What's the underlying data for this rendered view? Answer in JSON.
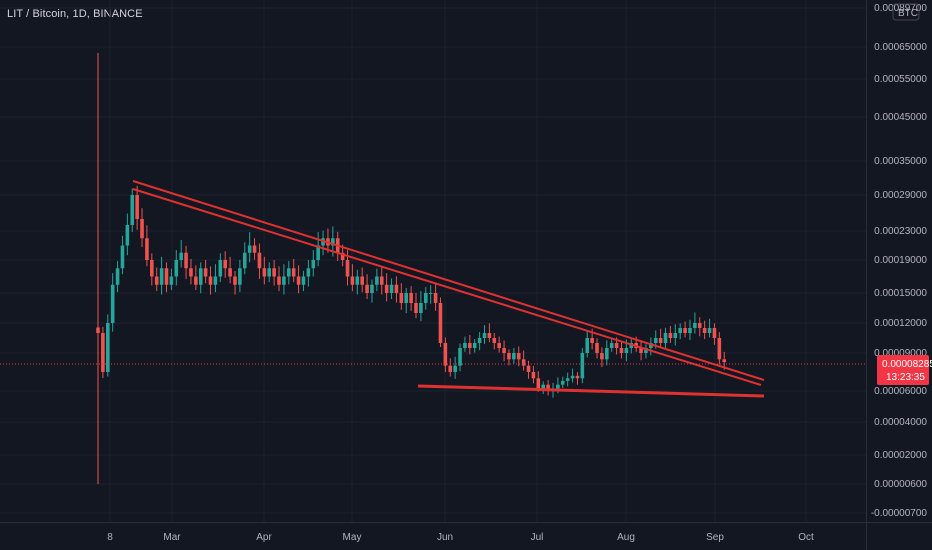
{
  "header": {
    "symbol": "LIT / Bitcoin, 1D, BINANCE"
  },
  "currency_label": "BTC",
  "last_price": {
    "value": 8.285e-05,
    "label": "0.00008285",
    "countdown": "13:23:35",
    "color": "#f23645"
  },
  "colors": {
    "background": "#131722",
    "grid": "#1e2230",
    "up": "#26a69a",
    "down": "#ef5350",
    "trendline": "#e03131",
    "axis_text": "#b2b5be"
  },
  "chart_data": {
    "type": "candlestick",
    "title": "LIT / Bitcoin, 1D, BINANCE",
    "x_tick_labels": [
      "8",
      "Mar",
      "Apr",
      "May",
      "Jun",
      "Jul",
      "Aug",
      "Sep",
      "Oct"
    ],
    "y_tick_labels": [
      "0.00089700",
      "0.00065000",
      "0.00055000",
      "0.00045000",
      "0.00035000",
      "0.00029000",
      "0.00023000",
      "0.00019000",
      "0.00015000",
      "0.00012000",
      "0.00009000",
      "0.00006000",
      "0.00004000",
      "0.00002000",
      "0.00000600",
      "-0.00000700"
    ],
    "y_scale": "non-linear (auto)",
    "grid": true,
    "approx_close_series": {
      "description": "Approximate daily closes (BTC) from launch through early September",
      "values": [
        0.00011,
        7.5e-05,
        0.00012,
        0.00016,
        0.00018,
        0.00021,
        0.00024,
        0.00029,
        0.00025,
        0.00022,
        0.00019,
        0.00017,
        0.00016,
        0.00018,
        0.00016,
        0.00017,
        0.00019,
        0.0002,
        0.00018,
        0.00017,
        0.00016,
        0.00018,
        0.00017,
        0.00016,
        0.00017,
        0.00019,
        0.00018,
        0.00017,
        0.00016,
        0.00018,
        0.0002,
        0.00021,
        0.0002,
        0.00018,
        0.00017,
        0.00018,
        0.00017,
        0.00016,
        0.00017,
        0.00018,
        0.00017,
        0.00016,
        0.00017,
        0.00018,
        0.00019,
        0.00021,
        0.00022,
        0.00021,
        0.00022,
        0.0002,
        0.00019,
        0.00017,
        0.00016,
        0.00017,
        0.00016,
        0.00015,
        0.00016,
        0.00017,
        0.00016,
        0.00015,
        0.00016,
        0.00015,
        0.00014,
        0.00015,
        0.00014,
        0.00013,
        0.00014,
        0.00015,
        0.00015,
        0.00014,
        0.0001,
        8e-05,
        7.5e-05,
        8e-05,
        9.5e-05,
        0.0001,
        9.5e-05,
        0.0001,
        0.000105,
        0.00011,
        0.000105,
        0.0001,
        9.5e-05,
        9e-05,
        8.5e-05,
        9e-05,
        8.5e-05,
        8e-05,
        7.5e-05,
        7e-05,
        6.2e-05,
        6.5e-05,
        6e-05,
        6.2e-05,
        6.5e-05,
        6.8e-05,
        7e-05,
        7.2e-05,
        7e-05,
        9e-05,
        0.000105,
        0.0001,
        9e-05,
        8.5e-05,
        9.5e-05,
        0.0001,
        9.5e-05,
        9e-05,
        9.5e-05,
        0.0001,
        9.5e-05,
        9e-05,
        9.5e-05,
        0.0001,
        0.000105,
        0.0001,
        0.00011,
        0.000105,
        0.00011,
        0.000115,
        0.00011,
        0.000115,
        0.00012,
        0.000115,
        0.00011,
        0.000115,
        0.000105,
        8.5e-05,
        8.285e-05
      ]
    },
    "trendlines": [
      {
        "name": "upper resistance 1",
        "from": {
          "date": "Feb 11",
          "price": 0.00032
        },
        "to": {
          "date": "Sep 10",
          "price": 6.8e-05
        }
      },
      {
        "name": "upper resistance 2",
        "from": {
          "date": "Feb 11",
          "price": 0.00029
        },
        "to": {
          "date": "Sep 10",
          "price": 6.5e-05
        }
      },
      {
        "name": "support",
        "from": {
          "date": "May 20",
          "price": 6.55e-05
        },
        "to": {
          "date": "Sep 10",
          "price": 6e-05
        }
      }
    ],
    "marker_line": {
      "date": "Feb 8"
    }
  }
}
